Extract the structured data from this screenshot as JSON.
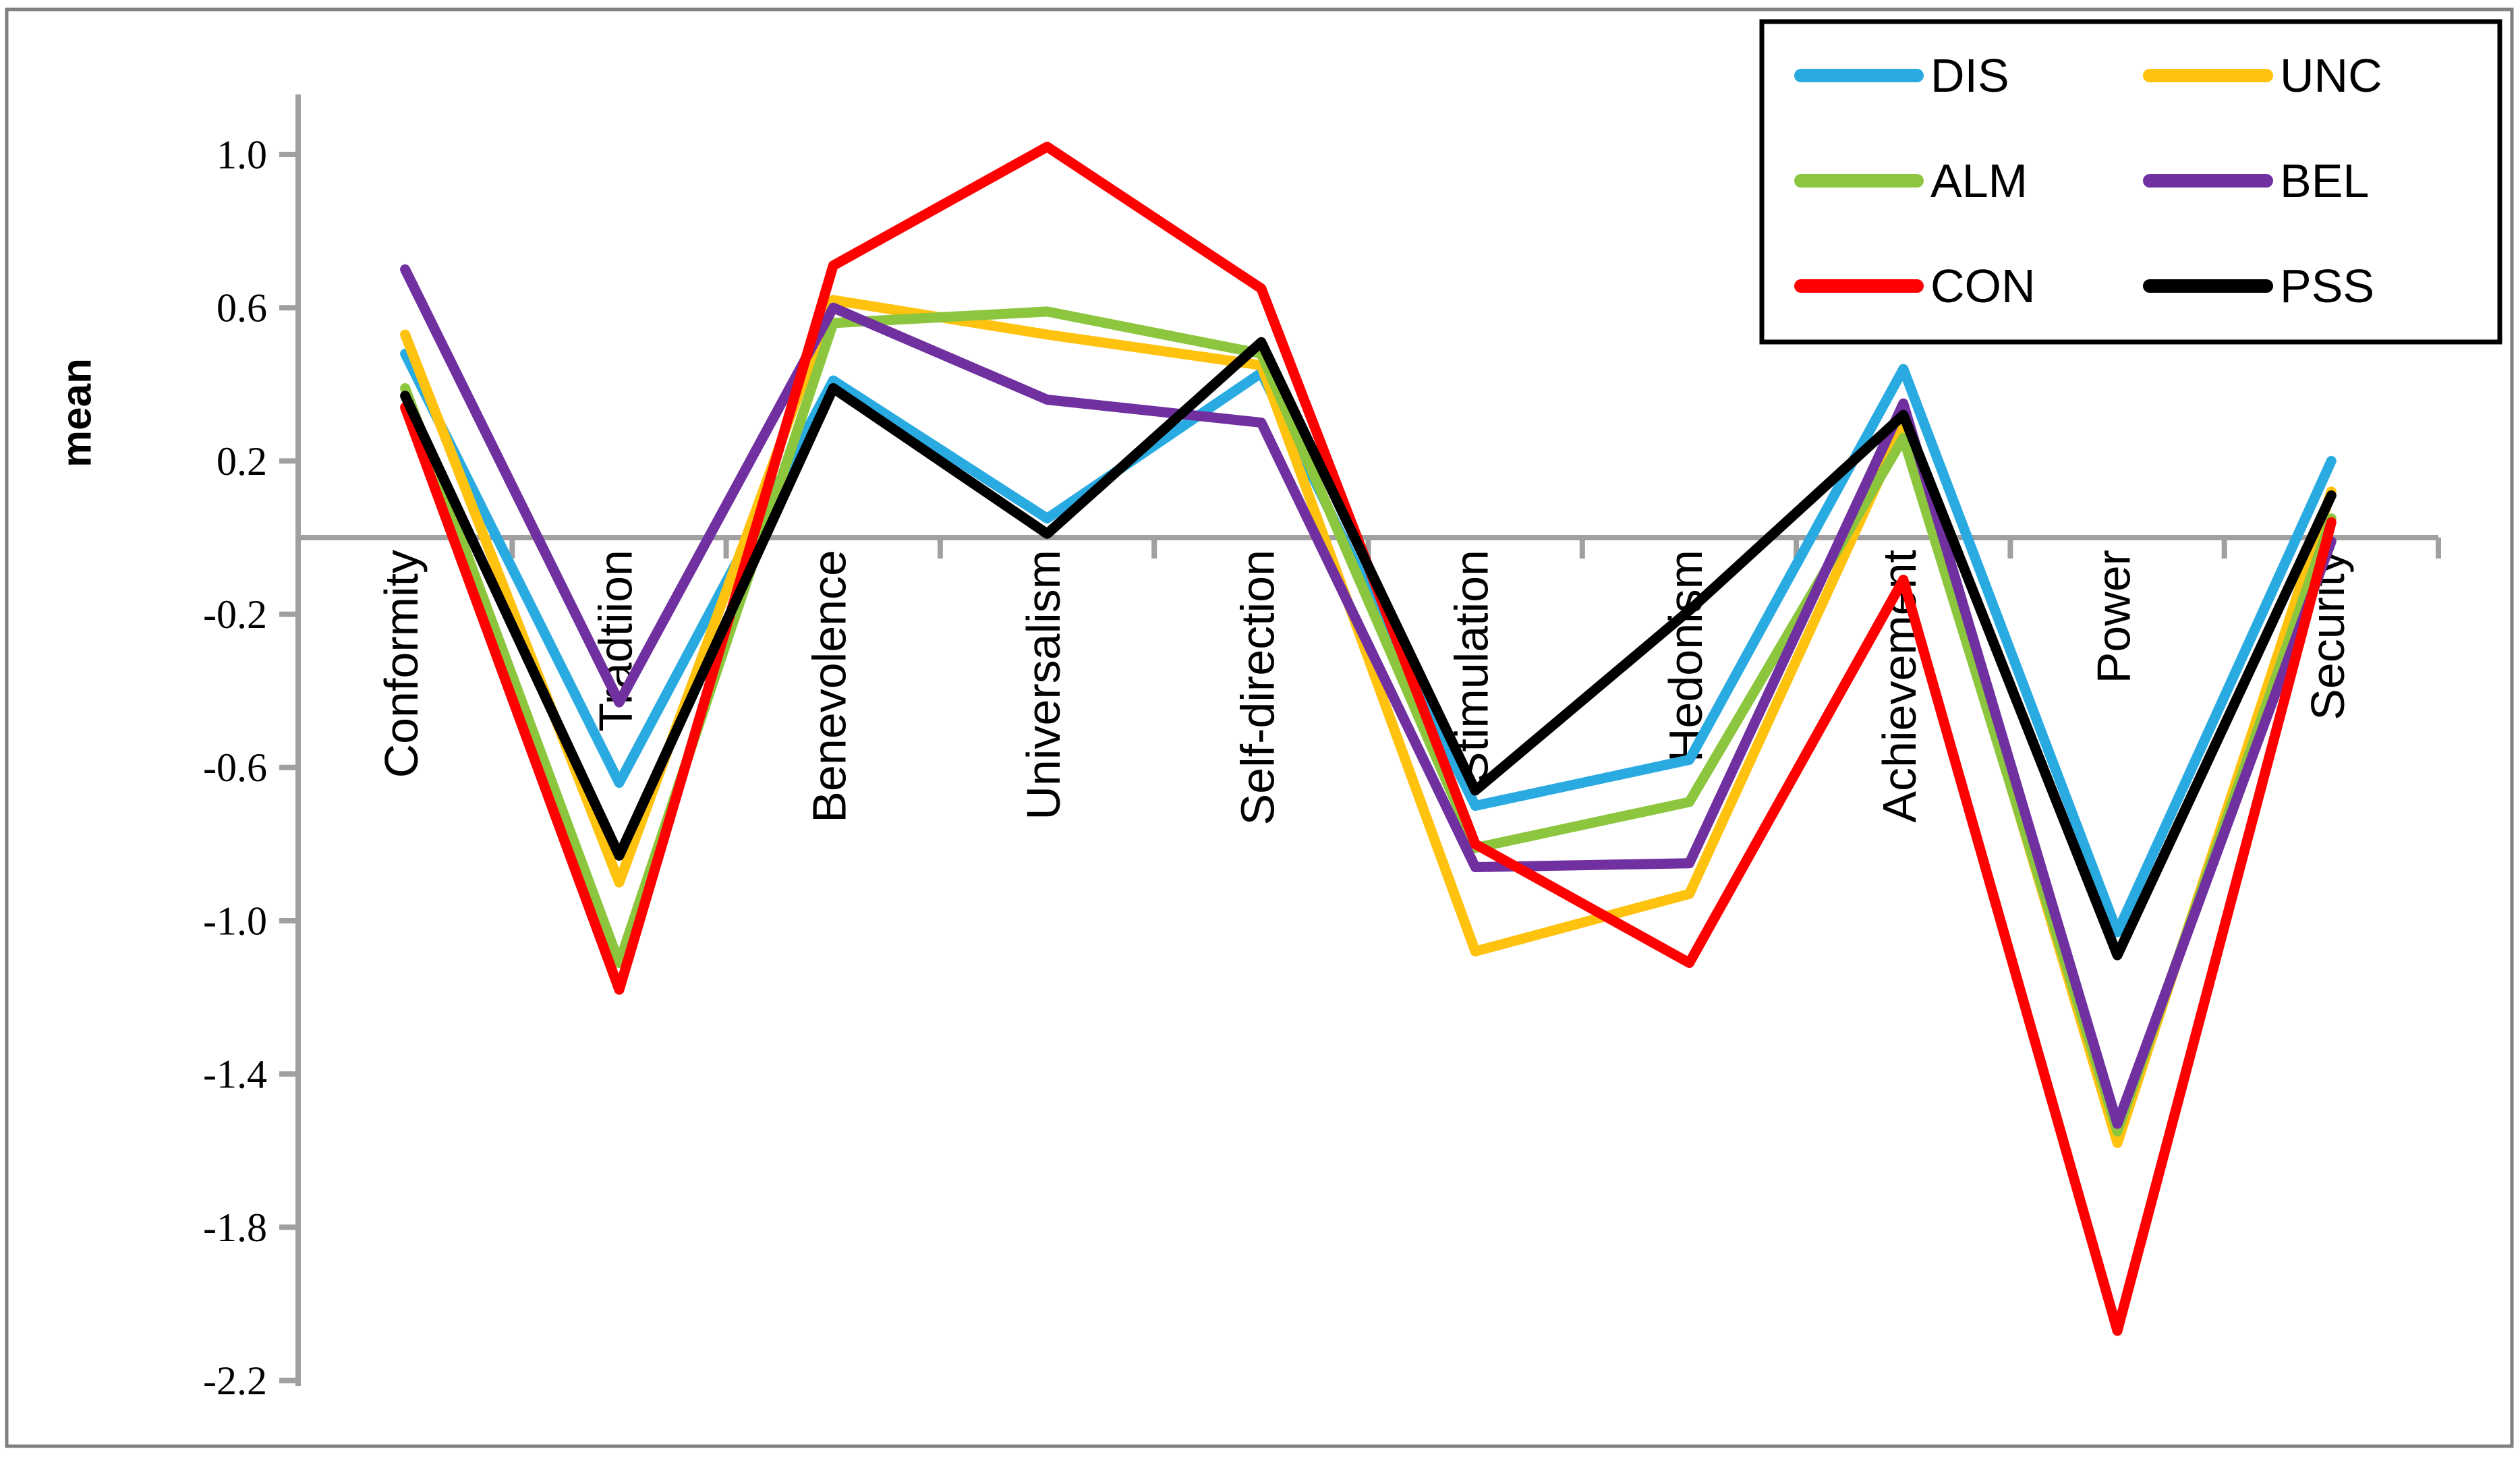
{
  "chart_data": {
    "type": "line",
    "title": "",
    "xlabel": "",
    "ylabel": "mean",
    "categories": [
      "Conformity",
      "Tradtiion",
      "Benevolence",
      "Universalism",
      "Self-direction",
      "Stimulation",
      "Hedonism",
      "Achievement",
      "Power",
      "Security"
    ],
    "series": [
      {
        "name": "DIS",
        "color": "#29ABE2",
        "values": [
          0.48,
          -0.64,
          0.41,
          0.05,
          0.43,
          -0.7,
          -0.58,
          0.44,
          -1.03,
          0.2
        ]
      },
      {
        "name": "UNC",
        "color": "#FFC20E",
        "values": [
          0.53,
          -0.9,
          0.62,
          0.53,
          0.45,
          -1.08,
          -0.93,
          0.29,
          -1.58,
          0.12
        ]
      },
      {
        "name": "ALM",
        "color": "#8CC63E",
        "values": [
          0.39,
          -1.11,
          0.56,
          0.59,
          0.48,
          -0.81,
          -0.69,
          0.26,
          -1.55,
          0.05
        ]
      },
      {
        "name": "BEL",
        "color": "#7030A0",
        "values": [
          0.7,
          -0.43,
          0.6,
          0.36,
          0.3,
          -0.86,
          -0.85,
          0.35,
          -1.53,
          -0.01
        ]
      },
      {
        "name": "CON",
        "color": "#FF0000",
        "values": [
          0.34,
          -1.18,
          0.71,
          1.02,
          0.65,
          -0.8,
          -1.11,
          -0.11,
          -2.07,
          0.04
        ]
      },
      {
        "name": "PSS",
        "color": "#000000",
        "values": [
          0.37,
          -0.83,
          0.39,
          0.01,
          0.51,
          -0.66,
          -0.19,
          0.32,
          -1.09,
          0.11
        ]
      }
    ],
    "y_ticks": [
      1.0,
      0.6,
      0.2,
      -0.2,
      -0.6,
      -1.0,
      -1.4,
      -1.8,
      -2.2
    ],
    "ylim": [
      -2.24,
      1.16
    ],
    "grid": "off",
    "legend_position": "top-right",
    "legend_layout": "2-columns-3-rows",
    "axis_color": "#A0A0A0",
    "text_color": "#000000"
  }
}
